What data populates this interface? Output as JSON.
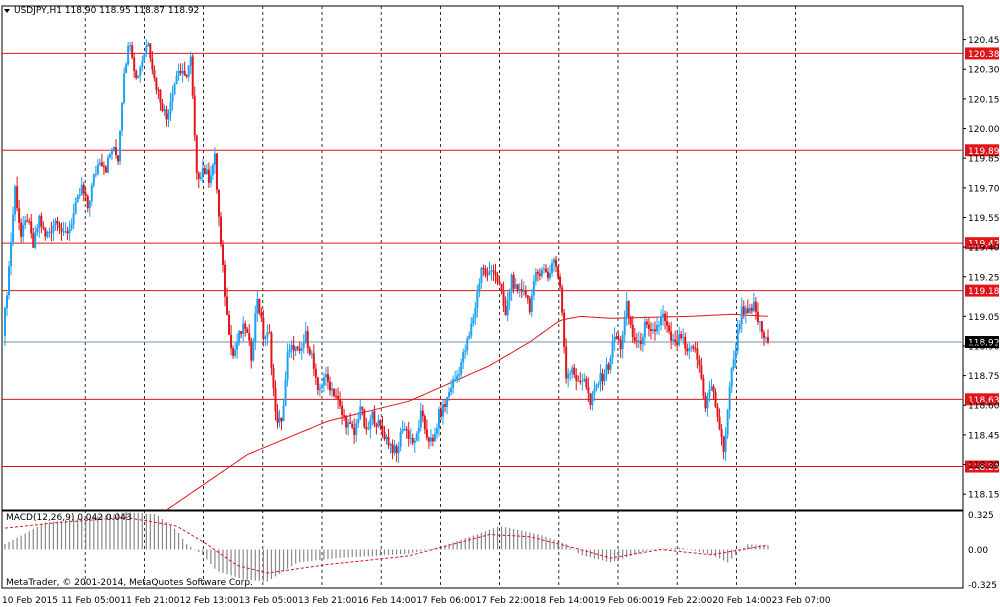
{
  "chart_data": {
    "type": "candlestick",
    "symbol_header": "USDJPY,H1  118.90 118.95 118.87 118.92",
    "ylim": [
      118.07,
      120.62
    ],
    "y_ticks": [
      "120.45",
      "120.30",
      "120.15",
      "120.00",
      "119.85",
      "119.70",
      "119.55",
      "119.40",
      "119.25",
      "119.05",
      "118.90",
      "118.75",
      "118.60",
      "118.45",
      "118.30",
      "118.15"
    ],
    "x_labels": [
      "10 Feb 2015",
      "11 Feb 05:00",
      "11 Feb 21:00",
      "12 Feb 13:00",
      "13 Feb 05:00",
      "13 Feb 21:00",
      "16 Feb 14:00",
      "17 Feb 06:00",
      "17 Feb 22:00",
      "18 Feb 14:00",
      "19 Feb 06:00",
      "19 Feb 22:00",
      "20 Feb 14:00",
      "23 Feb 07:00"
    ],
    "levels": [
      {
        "price": 120.38,
        "label": "120.38"
      },
      {
        "price": 119.89,
        "label": "119.89"
      },
      {
        "price": 119.42,
        "label": "119.42"
      },
      {
        "price": 119.18,
        "label": "119.18"
      },
      {
        "price": 118.63,
        "label": "118.63"
      },
      {
        "price": 118.29,
        "label": "118.29"
      }
    ],
    "current_price": {
      "price": 118.92,
      "label": "118.92"
    },
    "price_path": [
      [
        0,
        118.95
      ],
      [
        3,
        119.3
      ],
      [
        6,
        119.7
      ],
      [
        9,
        119.45
      ],
      [
        12,
        119.55
      ],
      [
        15,
        119.4
      ],
      [
        18,
        119.55
      ],
      [
        21,
        119.45
      ],
      [
        24,
        119.5
      ],
      [
        27,
        119.55
      ],
      [
        30,
        119.45
      ],
      [
        33,
        119.5
      ],
      [
        36,
        119.6
      ],
      [
        39,
        119.7
      ],
      [
        42,
        119.6
      ],
      [
        45,
        119.75
      ],
      [
        48,
        119.85
      ],
      [
        51,
        119.8
      ],
      [
        54,
        119.9
      ],
      [
        57,
        119.85
      ],
      [
        60,
        120.3
      ],
      [
        63,
        120.45
      ],
      [
        66,
        120.25
      ],
      [
        69,
        120.35
      ],
      [
        72,
        120.45
      ],
      [
        75,
        120.25
      ],
      [
        78,
        120.15
      ],
      [
        81,
        120.05
      ],
      [
        84,
        120.2
      ],
      [
        87,
        120.3
      ],
      [
        90,
        120.25
      ],
      [
        93,
        120.35
      ],
      [
        96,
        119.75
      ],
      [
        99,
        119.8
      ],
      [
        102,
        119.75
      ],
      [
        105,
        119.85
      ],
      [
        108,
        119.4
      ],
      [
        111,
        119.05
      ],
      [
        114,
        118.85
      ],
      [
        117,
        118.95
      ],
      [
        120,
        119.0
      ],
      [
        123,
        118.85
      ],
      [
        126,
        119.15
      ],
      [
        129,
        118.95
      ],
      [
        132,
        118.95
      ],
      [
        135,
        118.55
      ],
      [
        138,
        118.5
      ],
      [
        141,
        118.85
      ],
      [
        144,
        118.9
      ],
      [
        147,
        118.85
      ],
      [
        150,
        118.95
      ],
      [
        153,
        118.85
      ],
      [
        156,
        118.65
      ],
      [
        159,
        118.75
      ],
      [
        162,
        118.7
      ],
      [
        165,
        118.65
      ],
      [
        168,
        118.55
      ],
      [
        171,
        118.5
      ],
      [
        174,
        118.45
      ],
      [
        177,
        118.6
      ],
      [
        180,
        118.45
      ],
      [
        183,
        118.55
      ],
      [
        186,
        118.5
      ],
      [
        189,
        118.45
      ],
      [
        192,
        118.4
      ],
      [
        195,
        118.35
      ],
      [
        198,
        118.5
      ],
      [
        201,
        118.45
      ],
      [
        204,
        118.4
      ],
      [
        207,
        118.55
      ],
      [
        210,
        118.45
      ],
      [
        213,
        118.4
      ],
      [
        216,
        118.55
      ],
      [
        219,
        118.6
      ],
      [
        222,
        118.7
      ],
      [
        225,
        118.75
      ],
      [
        228,
        118.85
      ],
      [
        231,
        118.95
      ],
      [
        234,
        119.1
      ],
      [
        237,
        119.3
      ],
      [
        240,
        119.25
      ],
      [
        243,
        119.3
      ],
      [
        246,
        119.2
      ],
      [
        249,
        119.05
      ],
      [
        252,
        119.25
      ],
      [
        255,
        119.15
      ],
      [
        258,
        119.2
      ],
      [
        261,
        119.1
      ],
      [
        264,
        119.25
      ],
      [
        267,
        119.3
      ],
      [
        270,
        119.25
      ],
      [
        273,
        119.35
      ],
      [
        276,
        119.2
      ],
      [
        279,
        118.75
      ],
      [
        282,
        118.8
      ],
      [
        285,
        118.7
      ],
      [
        288,
        118.75
      ],
      [
        291,
        118.6
      ],
      [
        294,
        118.7
      ],
      [
        297,
        118.75
      ],
      [
        300,
        118.8
      ],
      [
        303,
        118.95
      ],
      [
        306,
        118.9
      ],
      [
        309,
        119.1
      ],
      [
        312,
        118.95
      ],
      [
        315,
        118.9
      ],
      [
        318,
        119.0
      ],
      [
        321,
        118.95
      ],
      [
        324,
        119.0
      ],
      [
        327,
        119.05
      ],
      [
        330,
        118.95
      ],
      [
        333,
        118.9
      ],
      [
        336,
        118.95
      ],
      [
        339,
        118.85
      ],
      [
        342,
        118.9
      ],
      [
        345,
        118.8
      ],
      [
        348,
        118.6
      ],
      [
        351,
        118.7
      ],
      [
        354,
        118.55
      ],
      [
        357,
        118.35
      ],
      [
        360,
        118.7
      ],
      [
        363,
        118.9
      ],
      [
        366,
        119.1
      ],
      [
        369,
        119.05
      ],
      [
        372,
        119.1
      ],
      [
        375,
        119.0
      ],
      [
        378,
        118.92
      ]
    ],
    "ma_path": [
      [
        80,
        118.07
      ],
      [
        120,
        118.35
      ],
      [
        160,
        118.52
      ],
      [
        200,
        118.62
      ],
      [
        240,
        118.8
      ],
      [
        260,
        118.92
      ],
      [
        275,
        119.03
      ],
      [
        285,
        119.05
      ],
      [
        300,
        119.04
      ],
      [
        340,
        119.05
      ],
      [
        360,
        119.06
      ],
      [
        378,
        119.05
      ]
    ],
    "macd": {
      "label": "MACD(12,26,9) 0.042 0.043",
      "ylim": [
        -0.36,
        0.36
      ],
      "y_ticks": [
        "0.325",
        "0.00",
        "-0.325"
      ],
      "hist_path": [
        [
          0,
          0.05
        ],
        [
          20,
          0.25
        ],
        [
          40,
          0.3
        ],
        [
          60,
          0.35
        ],
        [
          75,
          0.33
        ],
        [
          85,
          0.18
        ],
        [
          90,
          0.05
        ],
        [
          98,
          -0.05
        ],
        [
          105,
          -0.2
        ],
        [
          118,
          -0.28
        ],
        [
          130,
          -0.3
        ],
        [
          145,
          -0.12
        ],
        [
          165,
          -0.08
        ],
        [
          200,
          -0.04
        ],
        [
          215,
          0.02
        ],
        [
          235,
          0.15
        ],
        [
          245,
          0.22
        ],
        [
          265,
          0.14
        ],
        [
          278,
          0.05
        ],
        [
          285,
          -0.05
        ],
        [
          300,
          -0.12
        ],
        [
          320,
          0.0
        ],
        [
          335,
          0.02
        ],
        [
          350,
          -0.05
        ],
        [
          358,
          -0.12
        ],
        [
          368,
          0.05
        ],
        [
          378,
          0.04
        ]
      ],
      "signal_path": [
        [
          0,
          0.2
        ],
        [
          25,
          0.25
        ],
        [
          60,
          0.3
        ],
        [
          85,
          0.22
        ],
        [
          100,
          0.05
        ],
        [
          115,
          -0.15
        ],
        [
          130,
          -0.22
        ],
        [
          160,
          -0.14
        ],
        [
          200,
          -0.06
        ],
        [
          240,
          0.14
        ],
        [
          260,
          0.12
        ],
        [
          285,
          0.0
        ],
        [
          300,
          -0.08
        ],
        [
          325,
          0.0
        ],
        [
          350,
          -0.05
        ],
        [
          365,
          0.0
        ],
        [
          378,
          0.04
        ]
      ]
    }
  },
  "colors": {
    "bull": "#1da1f2",
    "bear": "#e0151b",
    "level": "#e0151b",
    "ma": "#e0151b",
    "current": "#6b8fb3",
    "macd_hist": "#888888",
    "macd_signal": "#e0151b",
    "grid": "#000000"
  },
  "copyright": "MetaTrader, © 2001-2014, MetaQuotes Software Corp."
}
